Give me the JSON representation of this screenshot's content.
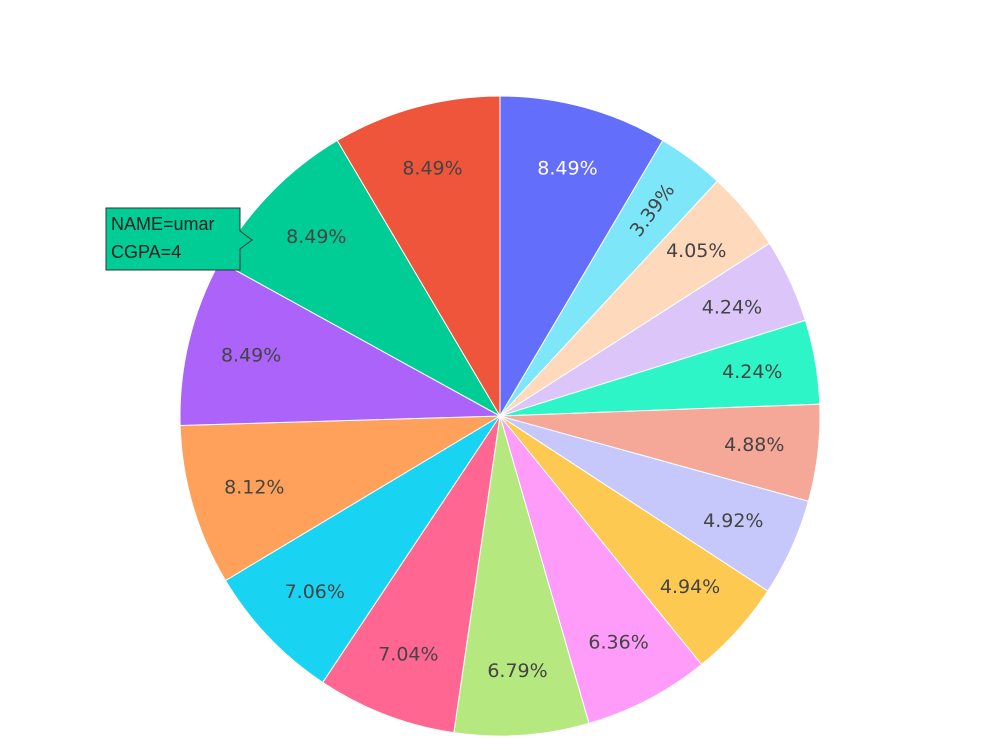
{
  "chart_data": {
    "type": "pie",
    "values": [
      8.49,
      3.39,
      4.05,
      4.24,
      4.24,
      4.88,
      4.92,
      4.94,
      6.36,
      6.79,
      7.04,
      7.06,
      8.12,
      8.49,
      8.49,
      8.49
    ],
    "value_labels": [
      "8.49%",
      "3.39%",
      "4.05%",
      "4.24%",
      "4.24%",
      "4.88%",
      "4.92%",
      "4.94%",
      "6.36%",
      "6.79%",
      "7.04%",
      "7.06%",
      "8.12%",
      "8.49%",
      "8.49%",
      "8.49%"
    ],
    "colors": [
      "#636efa",
      "#7de6f8",
      "#fed9bc",
      "#dcc6f9",
      "#2ef5c8",
      "#f5a898",
      "#c6c8fb",
      "#fec951",
      "#ff9cfa",
      "#b6e880",
      "#ff6692",
      "#19d3f3",
      "#ffa15a",
      "#ab63fa",
      "#00cc96",
      "#ef553b"
    ],
    "direction": "clockwise",
    "tooltip": {
      "slice": 14,
      "lines": [
        "NAME=umar",
        "CGPA=4"
      ]
    }
  }
}
